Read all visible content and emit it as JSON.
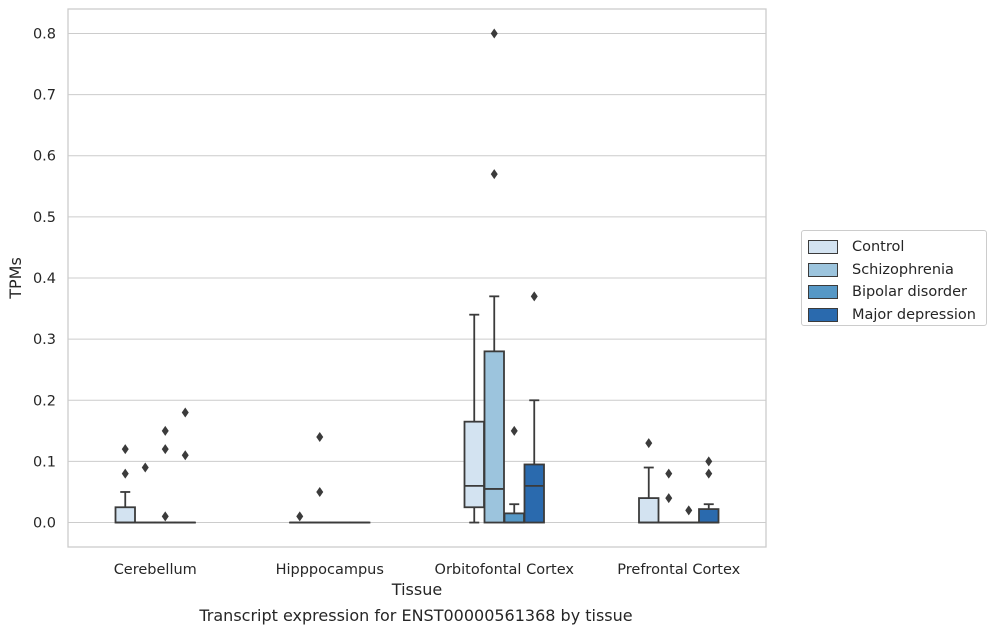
{
  "chart_data": {
    "type": "boxplot",
    "title": "",
    "xlabel": "Tissue",
    "ylabel": "TPMs",
    "caption": "Transcript expression for ENST00000561368 by tissue",
    "ylim": [
      -0.04,
      0.84
    ],
    "yticks": [
      "0.0",
      "0.1",
      "0.2",
      "0.3",
      "0.4",
      "0.5",
      "0.6",
      "0.7",
      "0.8"
    ],
    "grid": "horizontal",
    "legend_position": "right",
    "categories": [
      "Cerebellum",
      "Hipppocampus",
      "Orbitofontal Cortex",
      "Prefrontal Cortex"
    ],
    "series": [
      {
        "name": "Control",
        "color": "#d3e3f1",
        "boxes": [
          {
            "q1": 0.0,
            "median": 0.0,
            "q3": 0.025,
            "whislo": 0.0,
            "whishi": 0.05,
            "fliers": [
              0.08,
              0.12
            ]
          },
          {
            "q1": 0.0,
            "median": 0.0,
            "q3": 0.0,
            "whislo": 0.0,
            "whishi": 0.0,
            "fliers": [
              0.01
            ]
          },
          {
            "q1": 0.025,
            "median": 0.06,
            "q3": 0.165,
            "whislo": 0.0,
            "whishi": 0.34,
            "fliers": []
          },
          {
            "q1": 0.0,
            "median": 0.0,
            "q3": 0.04,
            "whislo": 0.0,
            "whishi": 0.09,
            "fliers": [
              0.13
            ]
          }
        ]
      },
      {
        "name": "Schizophrenia",
        "color": "#9cc4dd",
        "boxes": [
          {
            "q1": 0.0,
            "median": 0.0,
            "q3": 0.0,
            "whislo": 0.0,
            "whishi": 0.0,
            "fliers": [
              0.09
            ]
          },
          {
            "q1": 0.0,
            "median": 0.0,
            "q3": 0.0,
            "whislo": 0.0,
            "whishi": 0.0,
            "fliers": [
              0.05,
              0.14
            ]
          },
          {
            "q1": 0.0,
            "median": 0.055,
            "q3": 0.28,
            "whislo": 0.0,
            "whishi": 0.37,
            "fliers": [
              0.57,
              0.8
            ]
          },
          {
            "q1": 0.0,
            "median": 0.0,
            "q3": 0.0,
            "whislo": 0.0,
            "whishi": 0.0,
            "fliers": [
              0.04,
              0.08
            ]
          }
        ]
      },
      {
        "name": "Bipolar disorder",
        "color": "#5698c6",
        "boxes": [
          {
            "q1": 0.0,
            "median": 0.0,
            "q3": 0.0,
            "whislo": 0.0,
            "whishi": 0.0,
            "fliers": [
              0.01,
              0.12,
              0.15
            ]
          },
          {
            "q1": 0.0,
            "median": 0.0,
            "q3": 0.0,
            "whislo": 0.0,
            "whishi": 0.0,
            "fliers": []
          },
          {
            "q1": 0.0,
            "median": 0.0,
            "q3": 0.015,
            "whislo": 0.0,
            "whishi": 0.03,
            "fliers": [
              0.15
            ]
          },
          {
            "q1": 0.0,
            "median": 0.0,
            "q3": 0.0,
            "whislo": 0.0,
            "whishi": 0.0,
            "fliers": [
              0.02
            ]
          }
        ]
      },
      {
        "name": "Major depression",
        "color": "#2a6aae",
        "boxes": [
          {
            "q1": 0.0,
            "median": 0.0,
            "q3": 0.0,
            "whislo": 0.0,
            "whishi": 0.0,
            "fliers": [
              0.11,
              0.18
            ]
          },
          {
            "q1": 0.0,
            "median": 0.0,
            "q3": 0.0,
            "whislo": 0.0,
            "whishi": 0.0,
            "fliers": []
          },
          {
            "q1": 0.0,
            "median": 0.06,
            "q3": 0.095,
            "whislo": 0.0,
            "whishi": 0.2,
            "fliers": [
              0.37
            ]
          },
          {
            "q1": 0.0,
            "median": 0.0,
            "q3": 0.022,
            "whislo": 0.0,
            "whishi": 0.03,
            "fliers": [
              0.08,
              0.1
            ]
          }
        ]
      }
    ]
  }
}
